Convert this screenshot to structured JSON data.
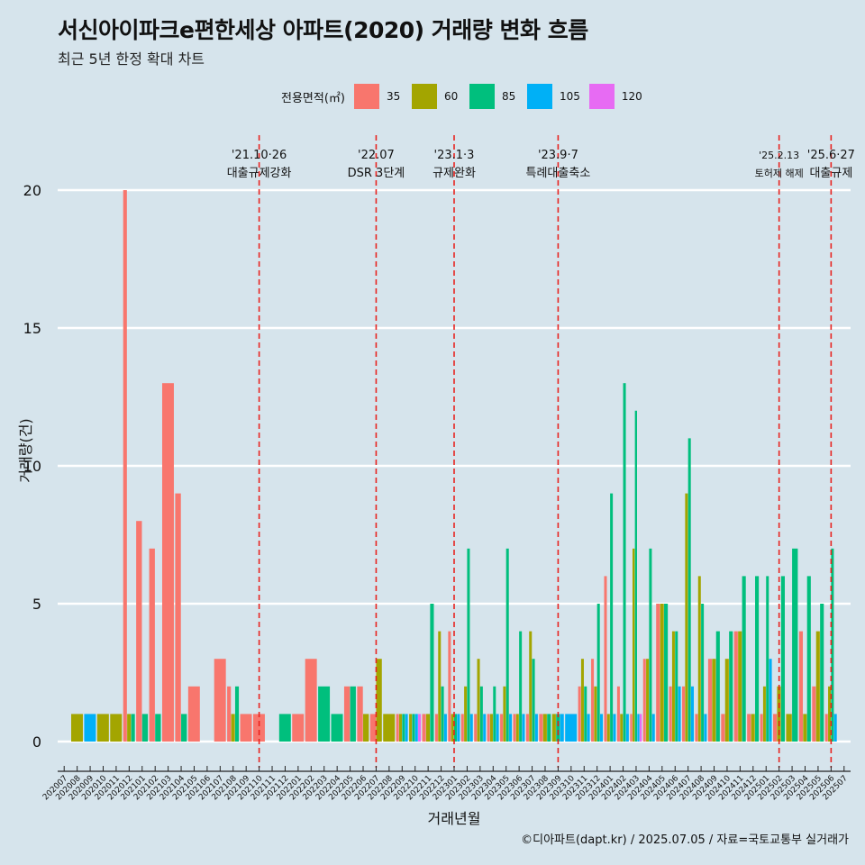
{
  "title": "서신아이파크e편한세상 아파트(2020) 거래량 변화 흐름",
  "subtitle": "최근 5년 한정 확대 차트",
  "caption": "©디아파트(dapt.kr) / 2025.07.05 / 자료=국토교통부 실거래가",
  "legend": {
    "title": "전용면적(㎡)",
    "items": [
      {
        "label": "35",
        "color": "#f8766d"
      },
      {
        "label": "60",
        "color": "#a3a500"
      },
      {
        "label": "85",
        "color": "#00bf7d"
      },
      {
        "label": "105",
        "color": "#00b0f6"
      },
      {
        "label": "120",
        "color": "#e76bf3"
      }
    ]
  },
  "chart_data": {
    "type": "bar",
    "xlabel": "거래년월",
    "ylabel": "거래량(건)",
    "ylim": [
      0,
      21
    ],
    "yticks": [
      0,
      5,
      10,
      15,
      20
    ],
    "grid": true,
    "legend_position": "top",
    "categories": [
      "202007",
      "202008",
      "202009",
      "202010",
      "202011",
      "202012",
      "202101",
      "202102",
      "202103",
      "202104",
      "202105",
      "202106",
      "202107",
      "202108",
      "202109",
      "202110",
      "202111",
      "202112",
      "202201",
      "202202",
      "202203",
      "202204",
      "202205",
      "202206",
      "202207",
      "202208",
      "202209",
      "202210",
      "202211",
      "202212",
      "202301",
      "202302",
      "202303",
      "202304",
      "202305",
      "202306",
      "202307",
      "202308",
      "202309",
      "202310",
      "202311",
      "202312",
      "202401",
      "202402",
      "202403",
      "202404",
      "202405",
      "202406",
      "202407",
      "202408",
      "202409",
      "202410",
      "202411",
      "202412",
      "202501",
      "202502",
      "202503",
      "202504",
      "202505",
      "202506",
      "202507"
    ],
    "bars": [
      {
        "month": "202008",
        "area": "60",
        "value": 1
      },
      {
        "month": "202009",
        "area": "105",
        "value": 1
      },
      {
        "month": "202010",
        "area": "60",
        "value": 1
      },
      {
        "month": "202011",
        "area": "60",
        "value": 1
      },
      {
        "month": "202012",
        "area": "35",
        "value": 20
      },
      {
        "month": "202012",
        "area": "60",
        "value": 1
      },
      {
        "month": "202012",
        "area": "85",
        "value": 1
      },
      {
        "month": "202101",
        "area": "35",
        "value": 8
      },
      {
        "month": "202101",
        "area": "85",
        "value": 1
      },
      {
        "month": "202102",
        "area": "35",
        "value": 7
      },
      {
        "month": "202102",
        "area": "85",
        "value": 1
      },
      {
        "month": "202103",
        "area": "35",
        "value": 13
      },
      {
        "month": "202104",
        "area": "35",
        "value": 9
      },
      {
        "month": "202104",
        "area": "85",
        "value": 1
      },
      {
        "month": "202105",
        "area": "35",
        "value": 2
      },
      {
        "month": "202107",
        "area": "35",
        "value": 3
      },
      {
        "month": "202108",
        "area": "35",
        "value": 2
      },
      {
        "month": "202108",
        "area": "60",
        "value": 1
      },
      {
        "month": "202108",
        "area": "85",
        "value": 2
      },
      {
        "month": "202109",
        "area": "35",
        "value": 1
      },
      {
        "month": "202110",
        "area": "35",
        "value": 1
      },
      {
        "month": "202112",
        "area": "85",
        "value": 1
      },
      {
        "month": "202201",
        "area": "35",
        "value": 1
      },
      {
        "month": "202202",
        "area": "35",
        "value": 3
      },
      {
        "month": "202203",
        "area": "85",
        "value": 2
      },
      {
        "month": "202204",
        "area": "85",
        "value": 1
      },
      {
        "month": "202205",
        "area": "35",
        "value": 2
      },
      {
        "month": "202205",
        "area": "85",
        "value": 2
      },
      {
        "month": "202206",
        "area": "35",
        "value": 2
      },
      {
        "month": "202206",
        "area": "60",
        "value": 1
      },
      {
        "month": "202207",
        "area": "35",
        "value": 1
      },
      {
        "month": "202207",
        "area": "60",
        "value": 3
      },
      {
        "month": "202208",
        "area": "60",
        "value": 1
      },
      {
        "month": "202209",
        "area": "35",
        "value": 1
      },
      {
        "month": "202209",
        "area": "60",
        "value": 1
      },
      {
        "month": "202209",
        "area": "85",
        "value": 1
      },
      {
        "month": "202209",
        "area": "105",
        "value": 1
      },
      {
        "month": "202210",
        "area": "60",
        "value": 1
      },
      {
        "month": "202210",
        "area": "85",
        "value": 1
      },
      {
        "month": "202210",
        "area": "105",
        "value": 1
      },
      {
        "month": "202210",
        "area": "120",
        "value": 1
      },
      {
        "month": "202211",
        "area": "35",
        "value": 1
      },
      {
        "month": "202211",
        "area": "60",
        "value": 1
      },
      {
        "month": "202211",
        "area": "85",
        "value": 5
      },
      {
        "month": "202212",
        "area": "35",
        "value": 1
      },
      {
        "month": "202212",
        "area": "60",
        "value": 4
      },
      {
        "month": "202212",
        "area": "85",
        "value": 2
      },
      {
        "month": "202212",
        "area": "105",
        "value": 1
      },
      {
        "month": "202301",
        "area": "35",
        "value": 4
      },
      {
        "month": "202301",
        "area": "60",
        "value": 1
      },
      {
        "month": "202301",
        "area": "85",
        "value": 1
      },
      {
        "month": "202301",
        "area": "105",
        "value": 1
      },
      {
        "month": "202302",
        "area": "35",
        "value": 1
      },
      {
        "month": "202302",
        "area": "60",
        "value": 2
      },
      {
        "month": "202302",
        "area": "85",
        "value": 7
      },
      {
        "month": "202302",
        "area": "105",
        "value": 1
      },
      {
        "month": "202303",
        "area": "35",
        "value": 1
      },
      {
        "month": "202303",
        "area": "60",
        "value": 3
      },
      {
        "month": "202303",
        "area": "85",
        "value": 2
      },
      {
        "month": "202303",
        "area": "105",
        "value": 1
      },
      {
        "month": "202304",
        "area": "35",
        "value": 1
      },
      {
        "month": "202304",
        "area": "60",
        "value": 1
      },
      {
        "month": "202304",
        "area": "85",
        "value": 2
      },
      {
        "month": "202304",
        "area": "105",
        "value": 1
      },
      {
        "month": "202305",
        "area": "35",
        "value": 1
      },
      {
        "month": "202305",
        "area": "60",
        "value": 2
      },
      {
        "month": "202305",
        "area": "85",
        "value": 7
      },
      {
        "month": "202305",
        "area": "105",
        "value": 1
      },
      {
        "month": "202306",
        "area": "35",
        "value": 1
      },
      {
        "month": "202306",
        "area": "60",
        "value": 1
      },
      {
        "month": "202306",
        "area": "85",
        "value": 4
      },
      {
        "month": "202306",
        "area": "105",
        "value": 1
      },
      {
        "month": "202307",
        "area": "35",
        "value": 1
      },
      {
        "month": "202307",
        "area": "60",
        "value": 4
      },
      {
        "month": "202307",
        "area": "85",
        "value": 3
      },
      {
        "month": "202307",
        "area": "105",
        "value": 1
      },
      {
        "month": "202308",
        "area": "35",
        "value": 1
      },
      {
        "month": "202308",
        "area": "60",
        "value": 1
      },
      {
        "month": "202308",
        "area": "85",
        "value": 1
      },
      {
        "month": "202309",
        "area": "60",
        "value": 1
      },
      {
        "month": "202309",
        "area": "85",
        "value": 1
      },
      {
        "month": "202309",
        "area": "105",
        "value": 1
      },
      {
        "month": "202310",
        "area": "105",
        "value": 1
      },
      {
        "month": "202311",
        "area": "35",
        "value": 2
      },
      {
        "month": "202311",
        "area": "60",
        "value": 3
      },
      {
        "month": "202311",
        "area": "85",
        "value": 2
      },
      {
        "month": "202311",
        "area": "105",
        "value": 1
      },
      {
        "month": "202312",
        "area": "35",
        "value": 3
      },
      {
        "month": "202312",
        "area": "60",
        "value": 2
      },
      {
        "month": "202312",
        "area": "85",
        "value": 5
      },
      {
        "month": "202312",
        "area": "105",
        "value": 1
      },
      {
        "month": "202401",
        "area": "35",
        "value": 6
      },
      {
        "month": "202401",
        "area": "60",
        "value": 1
      },
      {
        "month": "202401",
        "area": "85",
        "value": 9
      },
      {
        "month": "202401",
        "area": "105",
        "value": 1
      },
      {
        "month": "202402",
        "area": "35",
        "value": 2
      },
      {
        "month": "202402",
        "area": "60",
        "value": 1
      },
      {
        "month": "202402",
        "area": "85",
        "value": 13
      },
      {
        "month": "202402",
        "area": "105",
        "value": 1
      },
      {
        "month": "202403",
        "area": "35",
        "value": 1
      },
      {
        "month": "202403",
        "area": "60",
        "value": 7
      },
      {
        "month": "202403",
        "area": "85",
        "value": 12
      },
      {
        "month": "202403",
        "area": "105",
        "value": 1
      },
      {
        "month": "202403",
        "area": "120",
        "value": 1
      },
      {
        "month": "202404",
        "area": "35",
        "value": 3
      },
      {
        "month": "202404",
        "area": "60",
        "value": 3
      },
      {
        "month": "202404",
        "area": "85",
        "value": 7
      },
      {
        "month": "202404",
        "area": "105",
        "value": 1
      },
      {
        "month": "202405",
        "area": "35",
        "value": 5
      },
      {
        "month": "202405",
        "area": "60",
        "value": 5
      },
      {
        "month": "202405",
        "area": "85",
        "value": 5
      },
      {
        "month": "202406",
        "area": "35",
        "value": 2
      },
      {
        "month": "202406",
        "area": "60",
        "value": 4
      },
      {
        "month": "202406",
        "area": "85",
        "value": 4
      },
      {
        "month": "202406",
        "area": "105",
        "value": 2
      },
      {
        "month": "202407",
        "area": "35",
        "value": 2
      },
      {
        "month": "202407",
        "area": "60",
        "value": 9
      },
      {
        "month": "202407",
        "area": "85",
        "value": 11
      },
      {
        "month": "202407",
        "area": "105",
        "value": 2
      },
      {
        "month": "202408",
        "area": "35",
        "value": 1
      },
      {
        "month": "202408",
        "area": "60",
        "value": 6
      },
      {
        "month": "202408",
        "area": "85",
        "value": 5
      },
      {
        "month": "202408",
        "area": "105",
        "value": 1
      },
      {
        "month": "202409",
        "area": "35",
        "value": 3
      },
      {
        "month": "202409",
        "area": "60",
        "value": 3
      },
      {
        "month": "202409",
        "area": "85",
        "value": 4
      },
      {
        "month": "202410",
        "area": "35",
        "value": 1
      },
      {
        "month": "202410",
        "area": "60",
        "value": 3
      },
      {
        "month": "202410",
        "area": "85",
        "value": 4
      },
      {
        "month": "202411",
        "area": "35",
        "value": 4
      },
      {
        "month": "202411",
        "area": "60",
        "value": 4
      },
      {
        "month": "202411",
        "area": "85",
        "value": 6
      },
      {
        "month": "202412",
        "area": "35",
        "value": 1
      },
      {
        "month": "202412",
        "area": "60",
        "value": 1
      },
      {
        "month": "202412",
        "area": "85",
        "value": 6
      },
      {
        "month": "202501",
        "area": "35",
        "value": 1
      },
      {
        "month": "202501",
        "area": "60",
        "value": 2
      },
      {
        "month": "202501",
        "area": "85",
        "value": 6
      },
      {
        "month": "202501",
        "area": "105",
        "value": 3
      },
      {
        "month": "202502",
        "area": "35",
        "value": 1
      },
      {
        "month": "202502",
        "area": "60",
        "value": 2
      },
      {
        "month": "202502",
        "area": "85",
        "value": 6
      },
      {
        "month": "202503",
        "area": "60",
        "value": 1
      },
      {
        "month": "202503",
        "area": "85",
        "value": 7
      },
      {
        "month": "202504",
        "area": "35",
        "value": 4
      },
      {
        "month": "202504",
        "area": "60",
        "value": 1
      },
      {
        "month": "202504",
        "area": "85",
        "value": 6
      },
      {
        "month": "202505",
        "area": "35",
        "value": 2
      },
      {
        "month": "202505",
        "area": "60",
        "value": 4
      },
      {
        "month": "202505",
        "area": "85",
        "value": 5
      },
      {
        "month": "202506",
        "area": "35",
        "value": 1
      },
      {
        "month": "202506",
        "area": "60",
        "value": 2
      },
      {
        "month": "202506",
        "area": "85",
        "value": 7
      },
      {
        "month": "202506",
        "area": "105",
        "value": 1
      }
    ],
    "annotations": [
      {
        "month": "202110",
        "date": "'21.10·26",
        "text": "대출규제강화"
      },
      {
        "month": "202207",
        "date": "'22.07",
        "text": "DSR 3단계"
      },
      {
        "month": "202301",
        "date": "'23.1·3",
        "text": "규제완화"
      },
      {
        "month": "202309",
        "date": "'23.9·7",
        "text": "특례대출축소"
      },
      {
        "month": "202502",
        "date": "'25.2.13",
        "text": "토허제 해제"
      },
      {
        "month": "202506",
        "date": "'25.6·27",
        "text": "대출규제"
      }
    ]
  }
}
